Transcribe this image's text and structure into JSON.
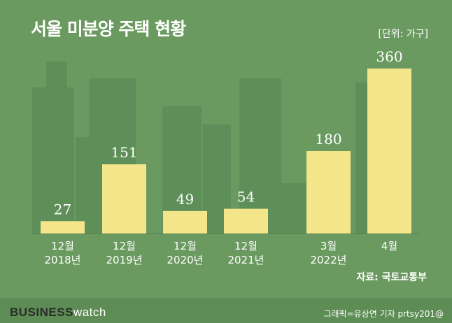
{
  "header": {
    "title": "서울 미분양 주택 현황",
    "unit": "[단위: 가구]"
  },
  "source": "자료: 국토교통부",
  "footer": {
    "brand_part1": "BUSINESS",
    "brand_part2": "watch",
    "credit": "그래픽=유상연 기자 prtsy201@"
  },
  "colors": {
    "background": "#6a9a5f",
    "bar": "#f4e58a",
    "text": "#ffffff"
  },
  "chart_data": {
    "type": "bar",
    "categories": [
      [
        "12월",
        "2018년"
      ],
      [
        "12월",
        "2019년"
      ],
      [
        "12월",
        "2020년"
      ],
      [
        "12월",
        "2021년"
      ],
      [
        "3월",
        "2022년"
      ],
      [
        "4월",
        ""
      ]
    ],
    "values": [
      27,
      151,
      49,
      54,
      180,
      360
    ],
    "ylim": [
      0,
      400
    ],
    "grid": false,
    "legend": "none"
  }
}
